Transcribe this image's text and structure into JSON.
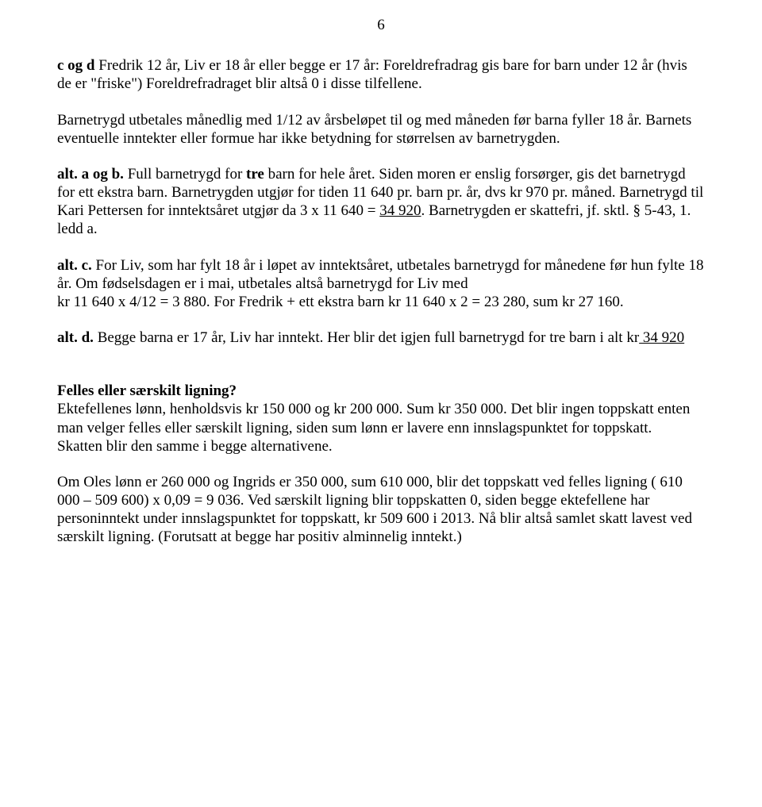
{
  "pageNumber": "6",
  "p1": {
    "bold1": "c og d",
    "rest": "  Fredrik 12 år, Liv er 18 år eller begge er 17 år:  Foreldrefradrag gis bare for barn under 12 år (hvis de er \"friske\") Foreldrefradraget blir altså 0 i disse tilfellene."
  },
  "p2": "Barnetrygd utbetales månedlig med 1/12 av årsbeløpet til og med måneden før barna fyller 18 år. Barnets eventuelle inntekter eller formue har ikke betydning for størrelsen av barnetrygden.",
  "p3": {
    "bold1": "alt. a og b.",
    "t1": " Full barnetrygd for ",
    "bold2": "tre",
    "t2": " barn for hele året. Siden moren er enslig forsørger, gis det barnetrygd for ett ekstra barn. Barnetrygden utgjør for tiden 11 640 pr. barn pr. år, dvs kr 970 pr. måned. Barnetrygd til Kari Pettersen for inntektsåret utgjør da 3 x 11 640 = ",
    "u1": "34 920",
    "t3": ". Barnetrygden er skattefri, jf. sktl. § 5-43, 1. ledd a."
  },
  "p4": {
    "bold1": "alt. c.",
    "t1": " For Liv, som har fylt 18 år i løpet av inntektsåret, utbetales barnetrygd for månedene før hun fylte 18 år. Om fødselsdagen er i mai, utbetales altså barnetrygd for Liv med",
    "t2": "kr 11 640  x  4/12   =   3 880. For Fredrik  + ett ekstra barn kr 11 640  x  2   =   23 280, sum kr 27 160."
  },
  "p5": {
    "bold1": "alt. d.",
    "t1": " Begge barna er 17 år, Liv har inntekt.  Her blir det igjen full barnetrygd for tre barn i alt kr",
    "u1": " 34 920"
  },
  "p6": {
    "bold1": "Felles eller særskilt ligning?",
    "t1": "Ektefellenes lønn, henholdsvis kr 150 000 og kr 200 000. Sum kr 350 000. Det blir ingen toppskatt enten man velger felles eller særskilt ligning, siden sum lønn er lavere enn innslagspunktet for toppskatt.",
    "t2": "Skatten blir den samme i begge alternativene."
  },
  "p7": "Om Oles lønn er 260 000 og Ingrids er 350 000, sum 610 000, blir det toppskatt ved felles ligning ( 610 000 – 509 600) x 0,09 = 9 036.  Ved særskilt ligning blir toppskatten 0, siden begge ektefellene har personinntekt under innslagspunktet for toppskatt, kr 509 600 i 2013. Nå blir altså samlet skatt lavest ved særskilt ligning. (Forutsatt at begge har positiv alminnelig inntekt.)"
}
